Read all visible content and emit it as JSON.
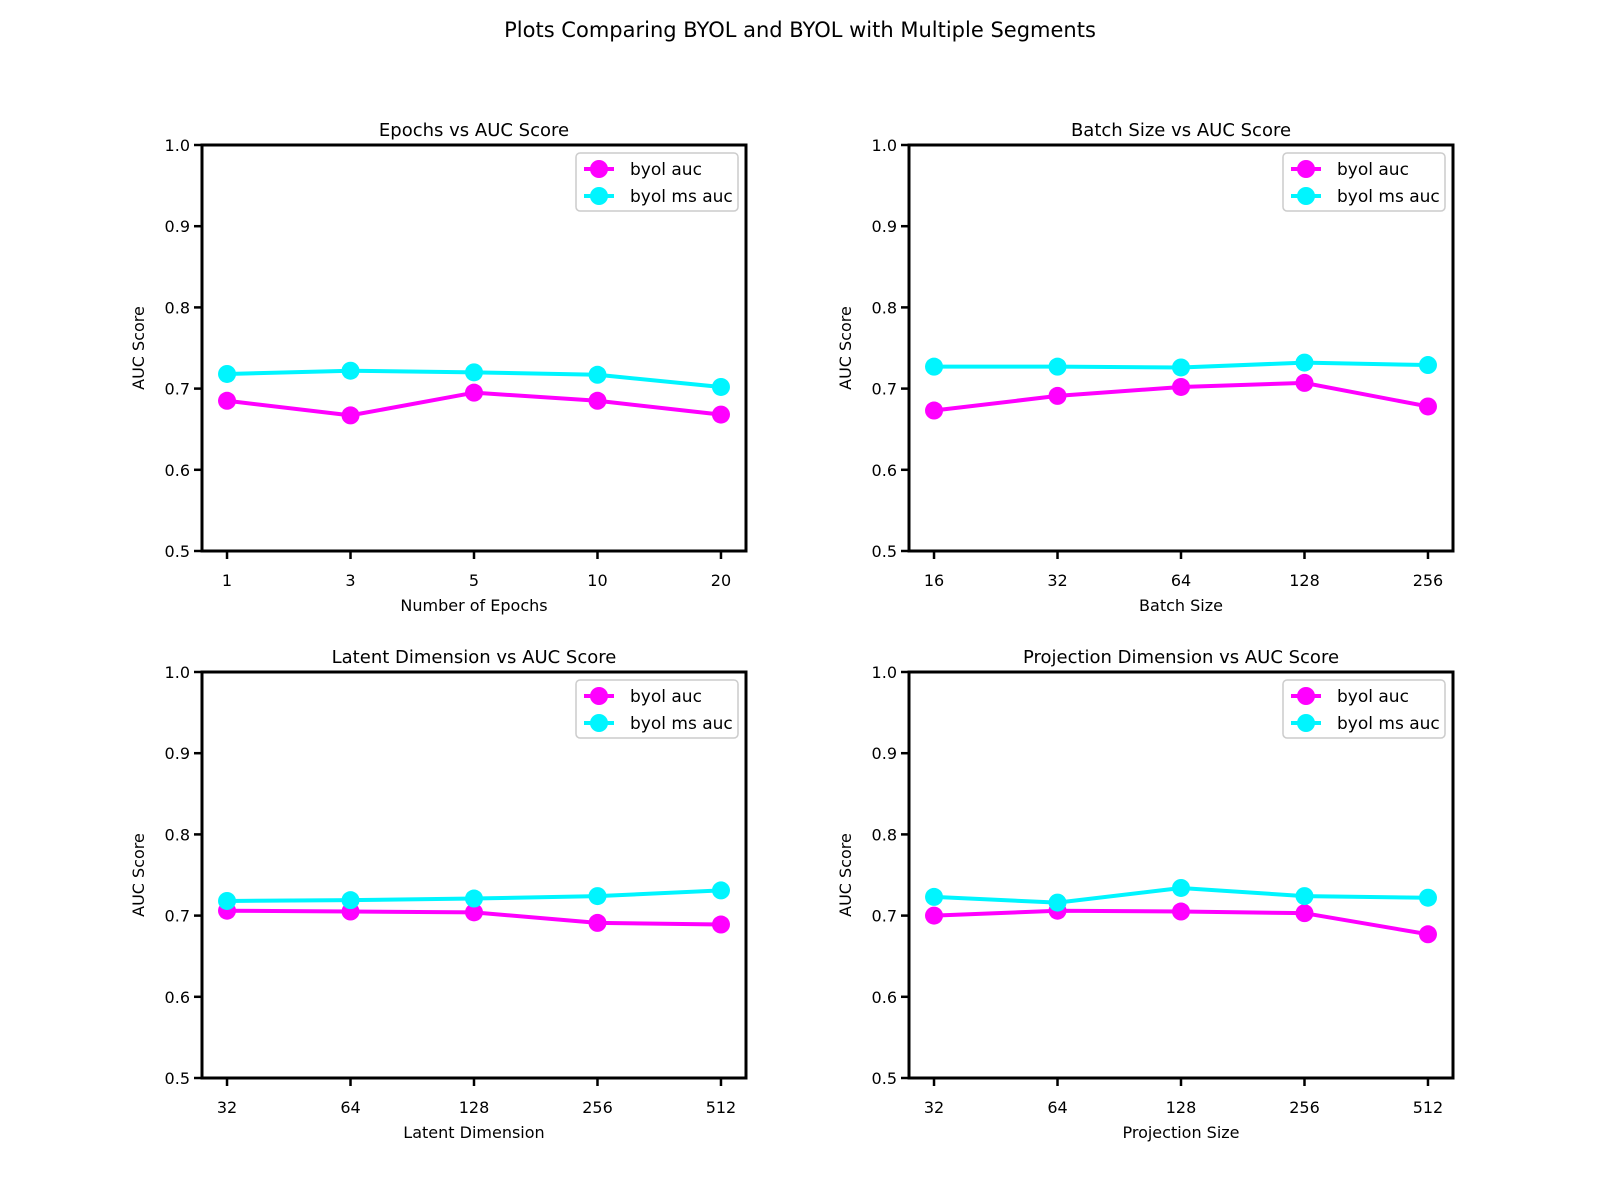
{
  "figure": {
    "title": "Plots Comparing BYOL and BYOL with Multiple Segments"
  },
  "colors": {
    "byol": "#ff00ff",
    "byol_ms": "#00f5ff",
    "axes": "#000000",
    "background": "#ffffff"
  },
  "chart_data": [
    {
      "type": "line",
      "title": "Epochs vs AUC Score",
      "xlabel": "Number of Epochs",
      "ylabel": "AUC Score",
      "categories": [
        "1",
        "3",
        "5",
        "10",
        "20"
      ],
      "ylim": [
        0.5,
        1.0
      ],
      "yticks": [
        "0.5",
        "0.6",
        "0.7",
        "0.8",
        "0.9",
        "1.0"
      ],
      "legend": "top-right",
      "grid": false,
      "series": [
        {
          "name": "byol auc",
          "values": [
            0.685,
            0.667,
            0.695,
            0.685,
            0.668
          ]
        },
        {
          "name": "byol ms auc",
          "values": [
            0.718,
            0.722,
            0.72,
            0.717,
            0.702
          ]
        }
      ]
    },
    {
      "type": "line",
      "title": "Batch Size vs AUC Score",
      "xlabel": "Batch Size",
      "ylabel": "AUC Score",
      "categories": [
        "16",
        "32",
        "64",
        "128",
        "256"
      ],
      "ylim": [
        0.5,
        1.0
      ],
      "yticks": [
        "0.5",
        "0.6",
        "0.7",
        "0.8",
        "0.9",
        "1.0"
      ],
      "legend": "top-right",
      "grid": false,
      "series": [
        {
          "name": "byol auc",
          "values": [
            0.673,
            0.691,
            0.702,
            0.707,
            0.678
          ]
        },
        {
          "name": "byol ms auc",
          "values": [
            0.727,
            0.727,
            0.726,
            0.732,
            0.729
          ]
        }
      ]
    },
    {
      "type": "line",
      "title": "Latent Dimension vs AUC Score",
      "xlabel": "Latent Dimension",
      "ylabel": "AUC Score",
      "categories": [
        "32",
        "64",
        "128",
        "256",
        "512"
      ],
      "ylim": [
        0.5,
        1.0
      ],
      "yticks": [
        "0.5",
        "0.6",
        "0.7",
        "0.8",
        "0.9",
        "1.0"
      ],
      "legend": "top-right",
      "grid": false,
      "series": [
        {
          "name": "byol auc",
          "values": [
            0.706,
            0.705,
            0.704,
            0.691,
            0.689
          ]
        },
        {
          "name": "byol ms auc",
          "values": [
            0.718,
            0.719,
            0.721,
            0.724,
            0.731
          ]
        }
      ]
    },
    {
      "type": "line",
      "title": "Projection Dimension vs AUC Score",
      "xlabel": "Projection Size",
      "ylabel": "AUC Score",
      "categories": [
        "32",
        "64",
        "128",
        "256",
        "512"
      ],
      "ylim": [
        0.5,
        1.0
      ],
      "yticks": [
        "0.5",
        "0.6",
        "0.7",
        "0.8",
        "0.9",
        "1.0"
      ],
      "legend": "top-right",
      "grid": false,
      "series": [
        {
          "name": "byol auc",
          "values": [
            0.7,
            0.706,
            0.705,
            0.703,
            0.677
          ]
        },
        {
          "name": "byol ms auc",
          "values": [
            0.723,
            0.716,
            0.734,
            0.724,
            0.722
          ]
        }
      ]
    }
  ]
}
